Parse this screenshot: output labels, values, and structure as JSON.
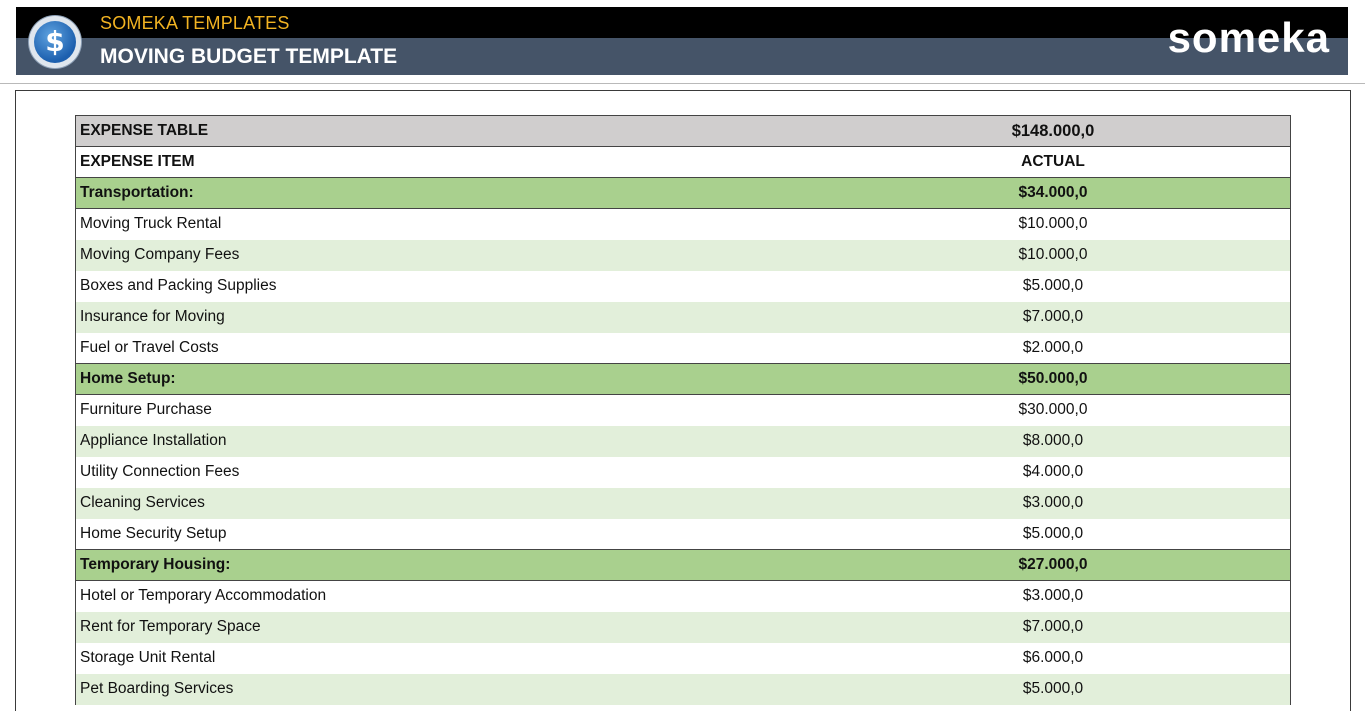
{
  "header": {
    "subtitle": "SOMEKA TEMPLATES",
    "title": "MOVING BUDGET TEMPLATE",
    "brand": "someka",
    "logo_symbol": "$"
  },
  "colors": {
    "banner": "#455468",
    "accent": "#f2b322",
    "title_row": "#d0cece",
    "category_row": "#a9d08e",
    "alt_row": "#e2efda"
  },
  "table": {
    "title": "EXPENSE TABLE",
    "total": "$148.000,0",
    "col_item": "EXPENSE ITEM",
    "col_actual": "ACTUAL",
    "sections": [
      {
        "name": "Transportation:",
        "total": "$34.000,0",
        "items": [
          {
            "label": "Moving Truck Rental",
            "actual": "$10.000,0"
          },
          {
            "label": "Moving Company Fees",
            "actual": "$10.000,0"
          },
          {
            "label": "Boxes and Packing Supplies",
            "actual": "$5.000,0"
          },
          {
            "label": "Insurance for Moving",
            "actual": "$7.000,0"
          },
          {
            "label": "Fuel or Travel Costs",
            "actual": "$2.000,0"
          }
        ]
      },
      {
        "name": "Home Setup:",
        "total": "$50.000,0",
        "items": [
          {
            "label": "Furniture Purchase",
            "actual": "$30.000,0"
          },
          {
            "label": "Appliance Installation",
            "actual": "$8.000,0"
          },
          {
            "label": "Utility Connection Fees",
            "actual": "$4.000,0"
          },
          {
            "label": "Cleaning Services",
            "actual": "$3.000,0"
          },
          {
            "label": "Home Security Setup",
            "actual": "$5.000,0"
          }
        ]
      },
      {
        "name": "Temporary Housing:",
        "total": "$27.000,0",
        "items": [
          {
            "label": "Hotel or Temporary Accommodation",
            "actual": "$3.000,0"
          },
          {
            "label": "Rent for Temporary Space",
            "actual": "$7.000,0"
          },
          {
            "label": "Storage Unit Rental",
            "actual": "$6.000,0"
          },
          {
            "label": "Pet Boarding Services",
            "actual": "$5.000,0"
          }
        ]
      }
    ]
  }
}
